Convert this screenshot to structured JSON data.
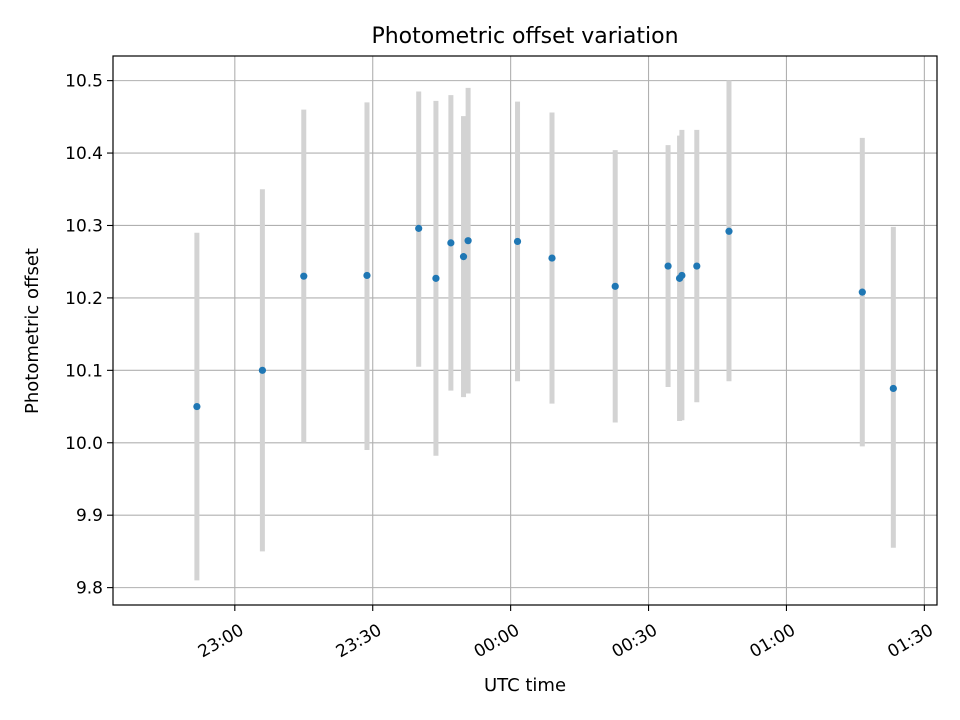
{
  "chart_data": {
    "type": "scatter",
    "title": "Photometric offset variation",
    "xlabel": "UTC time",
    "ylabel": "Photometric offset",
    "x_ticks": [
      "23:00",
      "23:30",
      "00:00",
      "00:30",
      "01:00",
      "01:30"
    ],
    "y_ticks": [
      "9.8",
      "9.9",
      "10.0",
      "10.1",
      "10.2",
      "10.3",
      "10.4",
      "10.5"
    ],
    "xlim": [
      "22:33:30",
      "01:32:45"
    ],
    "ylim": [
      9.776,
      10.534
    ],
    "grid": true,
    "point_color": "#1f77b4",
    "errorbar_color": "#d3d3d3",
    "points": [
      {
        "x": "22:51:45",
        "y": 10.05,
        "ylow": 9.81,
        "yhigh": 10.29
      },
      {
        "x": "23:06:00",
        "y": 10.1,
        "ylow": 9.85,
        "yhigh": 10.35
      },
      {
        "x": "23:15:00",
        "y": 10.23,
        "ylow": 10.0,
        "yhigh": 10.46
      },
      {
        "x": "23:28:45",
        "y": 10.231,
        "ylow": 9.99,
        "yhigh": 10.47
      },
      {
        "x": "23:40:00",
        "y": 10.296,
        "ylow": 10.105,
        "yhigh": 10.485
      },
      {
        "x": "23:43:45",
        "y": 10.227,
        "ylow": 9.982,
        "yhigh": 10.472
      },
      {
        "x": "23:47:00",
        "y": 10.276,
        "ylow": 10.072,
        "yhigh": 10.48
      },
      {
        "x": "23:49:45",
        "y": 10.257,
        "ylow": 10.063,
        "yhigh": 10.451
      },
      {
        "x": "23:50:45",
        "y": 10.279,
        "ylow": 10.068,
        "yhigh": 10.49
      },
      {
        "x": "00:01:30",
        "y": 10.278,
        "ylow": 10.085,
        "yhigh": 10.471
      },
      {
        "x": "00:09:00",
        "y": 10.255,
        "ylow": 10.054,
        "yhigh": 10.456
      },
      {
        "x": "00:22:45",
        "y": 10.216,
        "ylow": 10.028,
        "yhigh": 10.404
      },
      {
        "x": "00:34:15",
        "y": 10.244,
        "ylow": 10.077,
        "yhigh": 10.411
      },
      {
        "x": "00:36:45",
        "y": 10.227,
        "ylow": 10.03,
        "yhigh": 10.424
      },
      {
        "x": "00:37:15",
        "y": 10.231,
        "ylow": 10.031,
        "yhigh": 10.432
      },
      {
        "x": "00:40:30",
        "y": 10.244,
        "ylow": 10.056,
        "yhigh": 10.432
      },
      {
        "x": "00:47:30",
        "y": 10.292,
        "ylow": 10.085,
        "yhigh": 10.5
      },
      {
        "x": "01:16:30",
        "y": 10.208,
        "ylow": 9.995,
        "yhigh": 10.421
      },
      {
        "x": "01:23:15",
        "y": 10.075,
        "ylow": 9.855,
        "yhigh": 10.298
      }
    ]
  }
}
